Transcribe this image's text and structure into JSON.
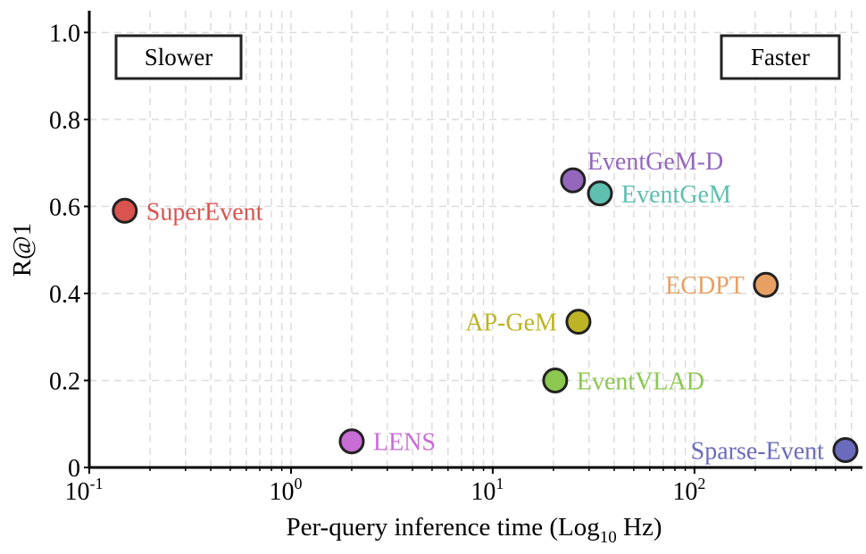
{
  "chart_data": {
    "type": "scatter",
    "xlabel": "Per-query inference time (Log",
    "xlabel_sub": "10",
    "xlabel_end": " Hz)",
    "ylabel": "R@1",
    "x_scale": "log",
    "xlim": [
      0.1,
      680
    ],
    "ylim": [
      0,
      1.05
    ],
    "grid": true,
    "x_ticks": [
      {
        "base": "10",
        "exp": "-1",
        "value": 0.1
      },
      {
        "base": "10",
        "exp": "0",
        "value": 1
      },
      {
        "base": "10",
        "exp": "1",
        "value": 10
      },
      {
        "base": "10",
        "exp": "2",
        "value": 100
      }
    ],
    "y_ticks": [
      {
        "label": "0",
        "value": 0
      },
      {
        "label": "0.2",
        "value": 0.2
      },
      {
        "label": "0.4",
        "value": 0.4
      },
      {
        "label": "0.6",
        "value": 0.6
      },
      {
        "label": "0.8",
        "value": 0.8
      },
      {
        "label": "1.0",
        "value": 1.0
      }
    ],
    "annotations": [
      {
        "text": "Slower",
        "position": "top-left"
      },
      {
        "text": "Faster",
        "position": "top-right"
      }
    ],
    "points": [
      {
        "name": "SuperEvent",
        "x": 0.15,
        "y": 0.59,
        "color": "#d9534f",
        "label_side": "right"
      },
      {
        "name": "LENS",
        "x": 2.0,
        "y": 0.06,
        "color": "#c86dd4",
        "label_side": "right"
      },
      {
        "name": "EventVLAD",
        "x": 20.4,
        "y": 0.2,
        "color": "#8cc850",
        "label_side": "right"
      },
      {
        "name": "AP-GeM",
        "x": 26.6,
        "y": 0.335,
        "color": "#bcb424",
        "label_side": "left"
      },
      {
        "name": "EventGeM-D",
        "x": 25,
        "y": 0.66,
        "color": "#9467bd",
        "label_side": "above-right"
      },
      {
        "name": "EventGeM",
        "x": 34,
        "y": 0.63,
        "color": "#5fbfb0",
        "label_side": "right"
      },
      {
        "name": "ECDPT",
        "x": 226,
        "y": 0.42,
        "color": "#e8a062",
        "label_side": "left"
      },
      {
        "name": "Sparse-Event",
        "x": 560,
        "y": 0.04,
        "color": "#6b6bbd",
        "label_side": "left"
      }
    ]
  }
}
